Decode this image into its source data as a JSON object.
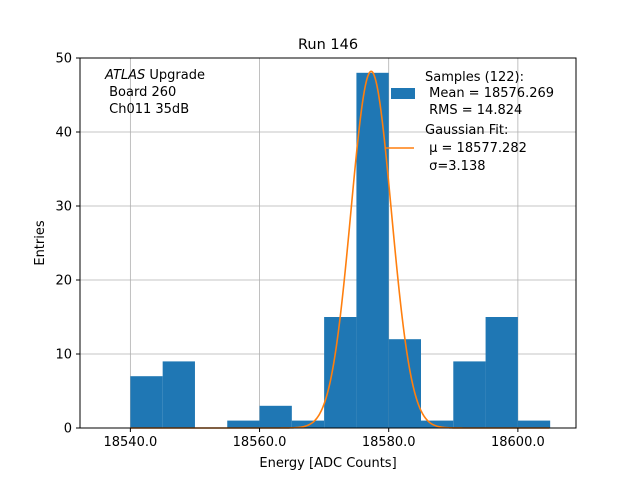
{
  "chart_data": {
    "type": "bar",
    "title": "Run 146",
    "xlabel": "Energy [ADC Counts]",
    "ylabel": "Entries",
    "xlim": [
      18532.2,
      18609.0
    ],
    "ylim": [
      0,
      50
    ],
    "xticks": [
      18540,
      18560,
      18580,
      18600
    ],
    "xtick_labels": [
      "18540.0",
      "18560.0",
      "18580.0",
      "18600.0"
    ],
    "yticks": [
      0,
      10,
      20,
      30,
      40,
      50
    ],
    "ytick_labels": [
      "0",
      "10",
      "20",
      "30",
      "40",
      "50"
    ],
    "grid": true,
    "bins": [
      {
        "x0": 18540,
        "x1": 18545,
        "count": 7
      },
      {
        "x0": 18545,
        "x1": 18550,
        "count": 9
      },
      {
        "x0": 18550,
        "x1": 18555,
        "count": 0
      },
      {
        "x0": 18555,
        "x1": 18560,
        "count": 1
      },
      {
        "x0": 18560,
        "x1": 18565,
        "count": 3
      },
      {
        "x0": 18565,
        "x1": 18570,
        "count": 1
      },
      {
        "x0": 18570,
        "x1": 18575,
        "count": 15
      },
      {
        "x0": 18575,
        "x1": 18580,
        "count": 48
      },
      {
        "x0": 18580,
        "x1": 18585,
        "count": 12
      },
      {
        "x0": 18585,
        "x1": 18590,
        "count": 1
      },
      {
        "x0": 18590,
        "x1": 18595,
        "count": 9
      },
      {
        "x0": 18595,
        "x1": 18600,
        "count": 15
      },
      {
        "x0": 18600,
        "x1": 18605,
        "count": 1
      }
    ],
    "fit": {
      "mu": 18577.282,
      "sigma": 3.138,
      "amplitude": 48.2
    },
    "bar_color": "#1f77b4",
    "fit_color": "#ff7f0e",
    "annotation": {
      "italic": "ATLAS",
      "rest": " Upgrade",
      "line2": " Board 260",
      "line3": " Ch011 35dB"
    },
    "legend": {
      "placement": "top-right",
      "samples_line1": "Samples (122):",
      "samples_line2": " Mean = 18576.269",
      "samples_line3": " RMS = 14.824",
      "fit_line1": "Gaussian Fit:",
      "fit_line2": " μ = 18577.282",
      "fit_line3": " σ=3.138"
    }
  }
}
